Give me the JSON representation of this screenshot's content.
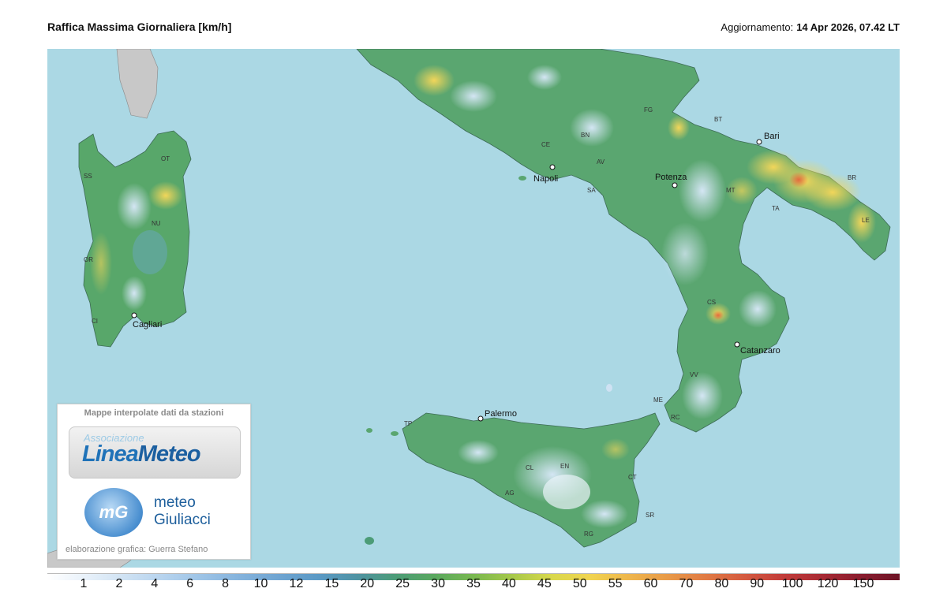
{
  "header": {
    "title": "Raffica Massima Giornaliera [km/h]",
    "update_label": "Aggiornamento:",
    "update_value": "14 Apr 2026, 07.42 LT"
  },
  "map": {
    "cities": [
      "Napoli",
      "Bari",
      "Potenza",
      "Cagliari",
      "Catanzaro",
      "Palermo"
    ],
    "provinces": [
      "OT",
      "SS",
      "NU",
      "OR",
      "CI",
      "FG",
      "BT",
      "CE",
      "BN",
      "AV",
      "SA",
      "MT",
      "BR",
      "TA",
      "LE",
      "CS",
      "VV",
      "RC",
      "ME",
      "TP",
      "CL",
      "EN",
      "CT",
      "AG",
      "SR",
      "RG"
    ]
  },
  "logo": {
    "caption": "Mappe interpolate dati da stazioni",
    "assoc": "Associazione",
    "linea_a": "Linea",
    "linea_b": "Meteo",
    "mg_mark": "mG",
    "mg_line1": "meteo",
    "mg_line2": "Giuliacci",
    "credit": "elaborazione grafica: Guerra Stefano"
  },
  "legend": {
    "labels": [
      "1",
      "2",
      "4",
      "6",
      "8",
      "10",
      "12",
      "15",
      "20",
      "25",
      "30",
      "35",
      "40",
      "45",
      "50",
      "55",
      "60",
      "70",
      "80",
      "90",
      "100",
      "120",
      "150"
    ],
    "colors": [
      "#ffffff",
      "#e8f1fa",
      "#cfe2f3",
      "#b6d3ee",
      "#9cc3e6",
      "#83b2dc",
      "#6ea4d1",
      "#5a99c5",
      "#4f93a3",
      "#4c9c77",
      "#5aa85f",
      "#79b850",
      "#a6c84a",
      "#d8d84c",
      "#f0d450",
      "#eeb64c",
      "#e89a48",
      "#e07a44",
      "#d45a40",
      "#c23c3a",
      "#a82a34",
      "#8a1c2e",
      "#6d1426"
    ]
  }
}
